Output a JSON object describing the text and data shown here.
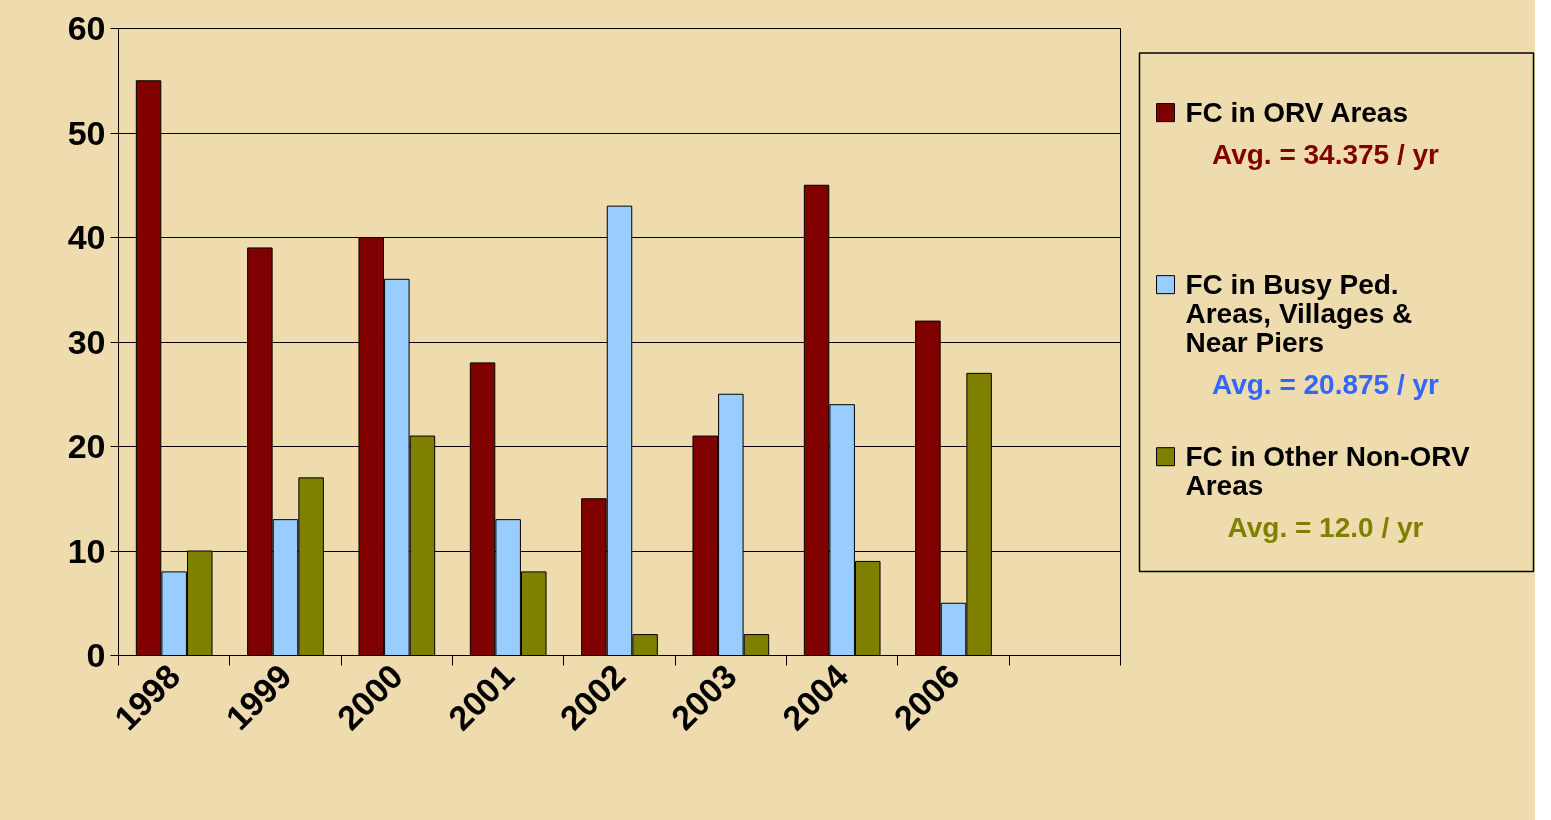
{
  "chart_data": {
    "type": "bar",
    "categories": [
      "1998",
      "1999",
      "2000",
      "2001",
      "2002",
      "2003",
      "2004",
      "2006",
      null
    ],
    "series": [
      {
        "name": "FC in ORV Areas",
        "color": "#800000",
        "values": [
          55,
          39,
          40,
          28,
          15,
          21,
          45,
          32,
          null
        ]
      },
      {
        "name": "FC in Busy Ped. Areas, Villages & Near Piers",
        "color": "#99ccff",
        "values": [
          8,
          13,
          36,
          13,
          43,
          25,
          24,
          5,
          null
        ]
      },
      {
        "name": "FC in Other Non-ORV Areas",
        "color": "#808000",
        "values": [
          10,
          17,
          21,
          8,
          2,
          2,
          9,
          27,
          null
        ]
      }
    ],
    "ylim": [
      0,
      60
    ],
    "yticks": [
      0,
      10,
      20,
      30,
      40,
      50,
      60
    ],
    "grid": "y",
    "legend": "right",
    "annotations": [
      "Avg. = 34.375 / yr",
      "Avg. = 20.875 / yr",
      "Avg. = 12.0 / yr"
    ]
  }
}
